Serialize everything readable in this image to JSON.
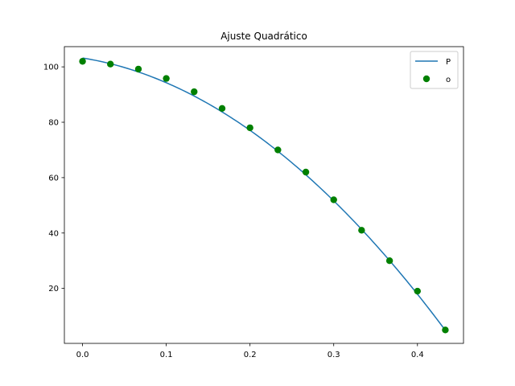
{
  "chart_data": {
    "type": "scatter",
    "title": "Ajuste Quadrático",
    "xlabel": "",
    "ylabel": "",
    "xlim": [
      -0.0217,
      0.455
    ],
    "ylim": [
      0.15,
      107.3
    ],
    "xticks": [
      0.0,
      0.1,
      0.2,
      0.3,
      0.4
    ],
    "xtick_labels": [
      "0.0",
      "0.1",
      "0.2",
      "0.3",
      "0.4"
    ],
    "yticks": [
      20,
      40,
      60,
      80,
      100
    ],
    "ytick_labels": [
      "20",
      "40",
      "60",
      "80",
      "100"
    ],
    "grid": false,
    "legend": "top-right",
    "series": [
      {
        "name": "P",
        "kind": "line",
        "color": "#1f77b4",
        "coefficients": [
          103.2,
          -48.0,
          -413.0
        ],
        "x_range": [
          0.0,
          0.4333
        ]
      },
      {
        "name": "o",
        "kind": "points",
        "color": "#008000",
        "x": [
          0.0,
          0.0333,
          0.0667,
          0.1,
          0.1333,
          0.1667,
          0.2,
          0.2333,
          0.2667,
          0.3,
          0.3333,
          0.3667,
          0.4,
          0.4333
        ],
        "y": [
          102.0,
          101.0,
          99.2,
          95.8,
          91.0,
          85.0,
          78.0,
          70.0,
          62.0,
          52.0,
          41.0,
          30.0,
          19.0,
          5.0
        ]
      }
    ]
  }
}
